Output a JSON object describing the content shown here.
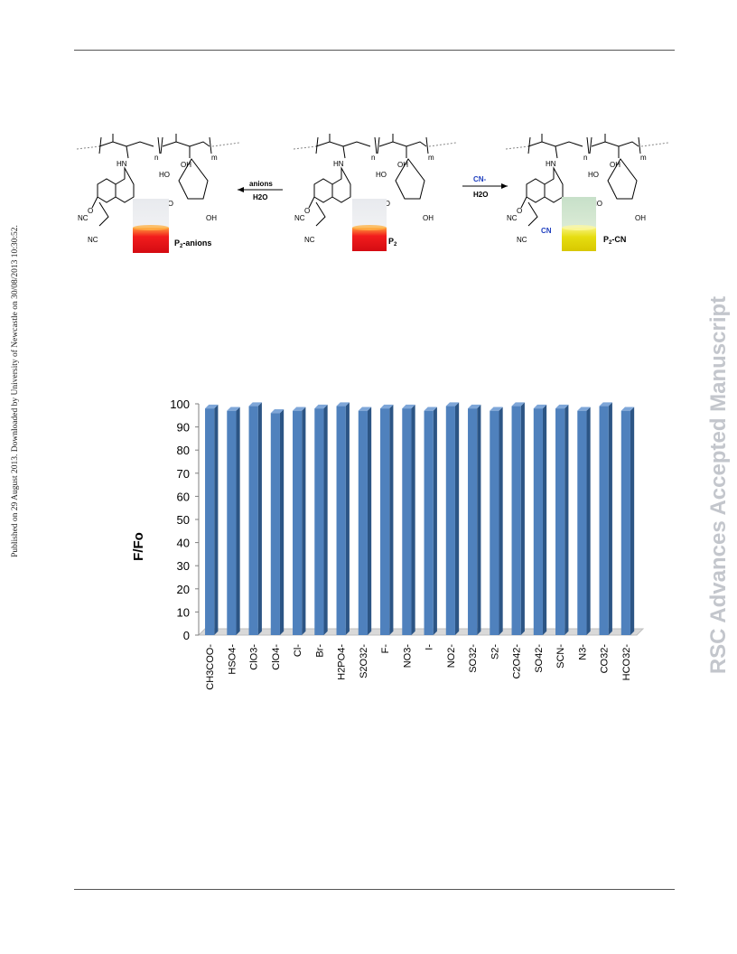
{
  "page": {
    "side_left_text": "Published on 29 August 2013. Downloaded by University of Newcastle on 30/08/2013 10:30:52.",
    "side_right_text": "RSC Advances Accepted Manuscript"
  },
  "scheme": {
    "left_label": "P2-anions",
    "left_label_main": "P",
    "left_label_sub": "2",
    "left_label_suffix": "-anions",
    "center_label_main": "P",
    "center_label_sub": "2",
    "right_label_main": "P",
    "right_label_sub": "2",
    "right_label_suffix": "-CN",
    "left_arrow_top": "anions",
    "left_arrow_bottom": "H2O",
    "right_arrow_top": "CN-",
    "right_arrow_bottom": "H2O",
    "atom_hn": "HN",
    "atom_o": "O",
    "atom_oh": "OH",
    "atom_ho": "HO",
    "atom_nc": "NC",
    "atom_cn": "CN",
    "subscript_n": "n",
    "subscript_m": "m"
  },
  "chart_data": {
    "type": "bar",
    "ylabel": "F/Fo",
    "ylim": [
      0,
      100
    ],
    "yticks": [
      0,
      10,
      20,
      30,
      40,
      50,
      60,
      70,
      80,
      90,
      100
    ],
    "categories": [
      "CH3COO-",
      "HSO4-",
      "ClO3-",
      "ClO4-",
      "Cl-",
      "Br-",
      "H2PO4-",
      "S2O32-",
      "F-",
      "NO3-",
      "I-",
      "NO2-",
      "SO32-",
      "S2-",
      "C2O42-",
      "SO42-",
      "SCN-",
      "N3-",
      "CO32-",
      "HCO32-"
    ],
    "series": [
      {
        "values": [
          98,
          97,
          99,
          96,
          97,
          98,
          99,
          97,
          98,
          98,
          97,
          99,
          98,
          97,
          99,
          98,
          98,
          97,
          99,
          97
        ]
      }
    ],
    "colors": {
      "bar": "#4f81bd",
      "bar_dark": "#2c5585",
      "bar_light": "#7ea6d8",
      "grid": "#ffffff",
      "floor": "#d9d9d9"
    },
    "grid": true,
    "legend": "none"
  }
}
